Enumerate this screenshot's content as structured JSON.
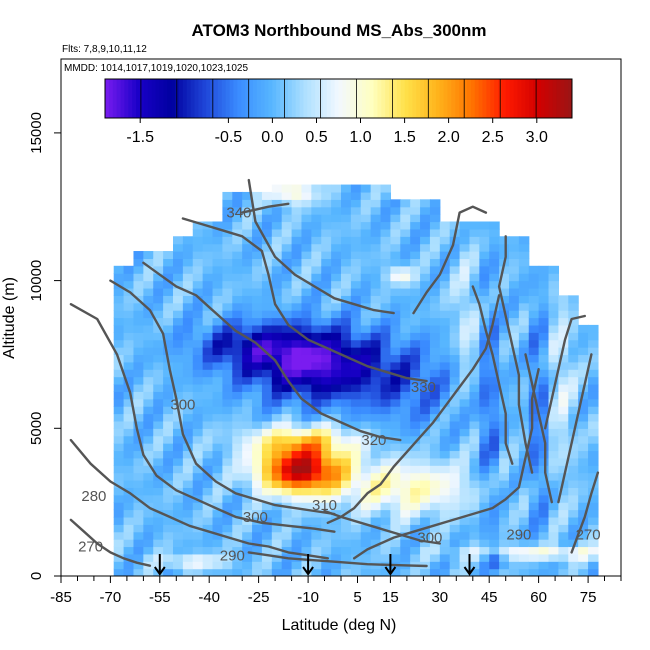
{
  "chart_data": {
    "type": "heatmap",
    "title": "ATOM3 Northbound MS_Abs_300nm",
    "subtitle_flights": "Flts: 7,8,9,10,11,12",
    "subtitle_dates": "MMDD: 1014,1017,1019,1020,1023,1025",
    "xlabel": "Latitude (deg N)",
    "ylabel": "Altitude (m)",
    "xlim": [
      -85,
      85
    ],
    "ylim": [
      0,
      17500
    ],
    "x_ticks_labeled": [
      -85,
      -70,
      -55,
      -40,
      -25,
      -10,
      5,
      15,
      30,
      45,
      60,
      75
    ],
    "y_ticks_labeled": [
      0,
      5000,
      10000,
      15000
    ],
    "colorbar": {
      "range": [
        -1.9,
        3.4
      ],
      "tick_values": [
        -1.5,
        -0.5,
        0.0,
        0.5,
        1.0,
        1.5,
        2.0,
        2.5,
        3.0
      ],
      "tick_labels": [
        "-1.5",
        "-0.5",
        "0.0",
        "0.5",
        "1.0",
        "1.5",
        "2.0",
        "2.5",
        "3.0"
      ],
      "colors": [
        "#7a1cf0",
        "#1a00c8",
        "#0000a0",
        "#1f46d8",
        "#3a8cff",
        "#57b6ff",
        "#aee0ff",
        "#f2f8ff",
        "#ffffc0",
        "#ffe14a",
        "#ffb21a",
        "#ff7300",
        "#ff1a00",
        "#d10000",
        "#9a1515"
      ]
    },
    "vertical_profile_latitudes": [
      -55,
      -10,
      15,
      39
    ],
    "contour_labels": [
      {
        "text": "340",
        "x": -31,
        "y": 12300
      },
      {
        "text": "330",
        "x": 25,
        "y": 6400
      },
      {
        "text": "320",
        "x": 10,
        "y": 4600
      },
      {
        "text": "310",
        "x": -5,
        "y": 2400
      },
      {
        "text": "300",
        "x": -48,
        "y": 5800
      },
      {
        "text": "300",
        "x": -26,
        "y": 2000
      },
      {
        "text": "300",
        "x": 27,
        "y": 1300
      },
      {
        "text": "290",
        "x": -33,
        "y": 700
      },
      {
        "text": "290",
        "x": 54,
        "y": 1400
      },
      {
        "text": "280",
        "x": -75,
        "y": 2700
      },
      {
        "text": "270",
        "x": -76,
        "y": 1000
      },
      {
        "text": "270",
        "x": 75,
        "y": 1400
      }
    ],
    "grid": false,
    "legend": "top"
  }
}
